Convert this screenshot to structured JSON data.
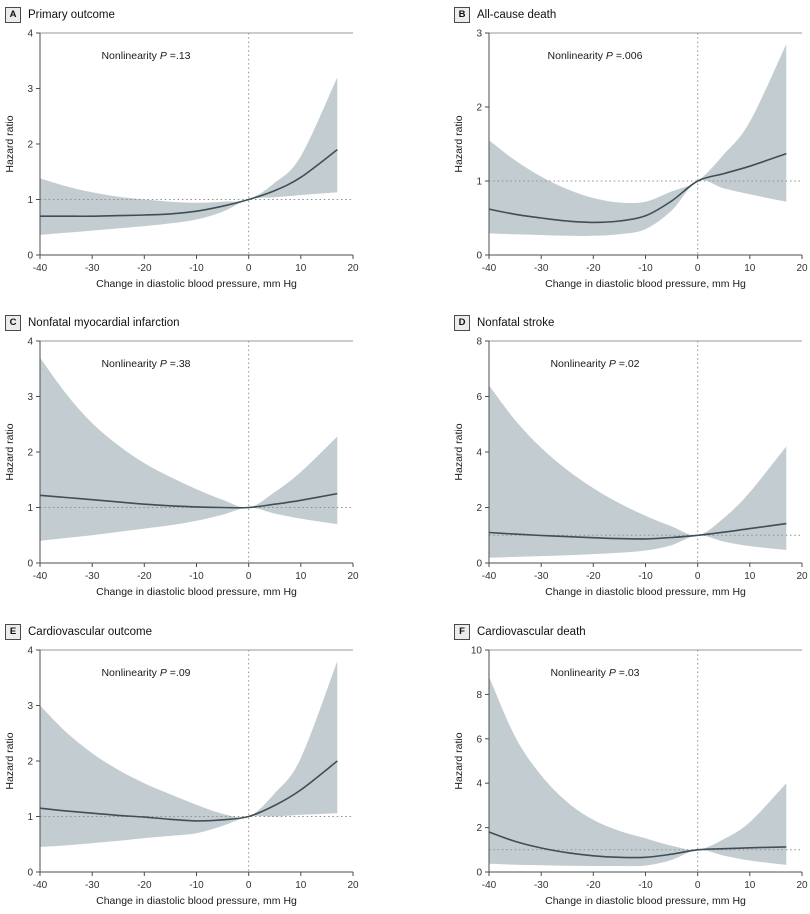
{
  "figure": {
    "nonlinearity_label": "Nonlinearity",
    "p_symbol": "P",
    "equals": "=",
    "colors": {
      "band": "#c3cdd1",
      "line": "#3f4e57",
      "ref_line": "#8f8f8f",
      "axis": "#4d4d4d",
      "top_rule": "#9a9a9a"
    }
  },
  "chart_data": [
    {
      "type": "line",
      "panel_label": "A",
      "title": "Primary outcome",
      "nonlinearity_p": ".13",
      "xlabel": "Change in diastolic blood pressure, mm Hg",
      "ylabel": "Hazard ratio",
      "xlim": [
        -40,
        20
      ],
      "xticks": [
        -40,
        -30,
        -20,
        -10,
        0,
        10,
        20
      ],
      "ylim": [
        0,
        4
      ],
      "yticks": [
        0,
        1,
        2,
        3,
        4
      ],
      "ref_x": 0,
      "ref_y": 1,
      "x": [
        -40,
        -35,
        -30,
        -25,
        -20,
        -15,
        -10,
        -5,
        0,
        5,
        10,
        17
      ],
      "series": [
        {
          "name": "hazard-ratio",
          "values": [
            0.7,
            0.7,
            0.7,
            0.71,
            0.72,
            0.74,
            0.79,
            0.88,
            1.0,
            1.16,
            1.4,
            1.9
          ]
        },
        {
          "name": "ci-upper",
          "values": [
            1.38,
            1.24,
            1.13,
            1.05,
            1.0,
            0.96,
            0.94,
            0.96,
            1.0,
            1.3,
            1.78,
            3.2
          ]
        },
        {
          "name": "ci-lower",
          "values": [
            0.36,
            0.4,
            0.44,
            0.48,
            0.52,
            0.57,
            0.64,
            0.78,
            1.0,
            1.04,
            1.08,
            1.13
          ]
        }
      ]
    },
    {
      "type": "line",
      "panel_label": "B",
      "title": "All-cause death",
      "nonlinearity_p": ".006",
      "xlabel": "Change in diastolic blood pressure, mm Hg",
      "ylabel": "Hazard ratio",
      "xlim": [
        -40,
        20
      ],
      "xticks": [
        -40,
        -30,
        -20,
        -10,
        0,
        10,
        20
      ],
      "ylim": [
        0,
        3
      ],
      "yticks": [
        0,
        1,
        2,
        3
      ],
      "ref_x": 0,
      "ref_y": 1,
      "x": [
        -40,
        -35,
        -30,
        -25,
        -20,
        -15,
        -10,
        -5,
        0,
        5,
        10,
        17
      ],
      "series": [
        {
          "name": "hazard-ratio",
          "values": [
            0.62,
            0.55,
            0.5,
            0.46,
            0.44,
            0.46,
            0.53,
            0.73,
            1.0,
            1.1,
            1.2,
            1.37
          ]
        },
        {
          "name": "ci-upper",
          "values": [
            1.55,
            1.28,
            1.06,
            0.89,
            0.77,
            0.71,
            0.72,
            0.86,
            1.0,
            1.36,
            1.8,
            2.85
          ]
        },
        {
          "name": "ci-lower",
          "values": [
            0.29,
            0.28,
            0.27,
            0.26,
            0.26,
            0.28,
            0.35,
            0.6,
            1.0,
            0.9,
            0.82,
            0.72
          ]
        }
      ]
    },
    {
      "type": "line",
      "panel_label": "C",
      "title": "Nonfatal myocardial infarction",
      "nonlinearity_p": ".38",
      "xlabel": "Change in diastolic blood pressure, mm Hg",
      "ylabel": "Hazard ratio",
      "xlim": [
        -40,
        20
      ],
      "xticks": [
        -40,
        -30,
        -20,
        -10,
        0,
        10,
        20
      ],
      "ylim": [
        0,
        4
      ],
      "yticks": [
        0,
        1,
        2,
        3,
        4
      ],
      "ref_x": 0,
      "ref_y": 1,
      "x": [
        -40,
        -35,
        -30,
        -25,
        -20,
        -15,
        -10,
        -5,
        0,
        5,
        10,
        17
      ],
      "series": [
        {
          "name": "hazard-ratio",
          "values": [
            1.22,
            1.18,
            1.14,
            1.1,
            1.06,
            1.03,
            1.01,
            1.0,
            1.0,
            1.06,
            1.13,
            1.25
          ]
        },
        {
          "name": "ci-upper",
          "values": [
            3.7,
            3.05,
            2.52,
            2.12,
            1.8,
            1.55,
            1.33,
            1.14,
            1.0,
            1.28,
            1.64,
            2.28
          ]
        },
        {
          "name": "ci-lower",
          "values": [
            0.4,
            0.45,
            0.5,
            0.56,
            0.62,
            0.68,
            0.76,
            0.87,
            1.0,
            0.89,
            0.8,
            0.7
          ]
        }
      ]
    },
    {
      "type": "line",
      "panel_label": "D",
      "title": "Nonfatal stroke",
      "nonlinearity_p": ".02",
      "xlabel": "Change in diastolic blood pressure, mm Hg",
      "ylabel": "Hazard ratio",
      "xlim": [
        -40,
        20
      ],
      "xticks": [
        -40,
        -30,
        -20,
        -10,
        0,
        10,
        20
      ],
      "ylim": [
        0,
        8
      ],
      "yticks": [
        0,
        2,
        4,
        6,
        8
      ],
      "ref_x": 0,
      "ref_y": 1,
      "x": [
        -40,
        -35,
        -30,
        -25,
        -20,
        -15,
        -10,
        -5,
        0,
        5,
        10,
        17
      ],
      "series": [
        {
          "name": "hazard-ratio",
          "values": [
            1.1,
            1.04,
            0.99,
            0.95,
            0.91,
            0.88,
            0.87,
            0.92,
            1.0,
            1.11,
            1.24,
            1.42
          ]
        },
        {
          "name": "ci-upper",
          "values": [
            6.4,
            5.15,
            4.15,
            3.35,
            2.7,
            2.15,
            1.7,
            1.32,
            1.0,
            1.62,
            2.55,
            4.2
          ]
        },
        {
          "name": "ci-lower",
          "values": [
            0.19,
            0.22,
            0.25,
            0.28,
            0.32,
            0.37,
            0.45,
            0.64,
            1.0,
            0.77,
            0.61,
            0.47
          ]
        }
      ]
    },
    {
      "type": "line",
      "panel_label": "E",
      "title": "Cardiovascular outcome",
      "nonlinearity_p": ".09",
      "xlabel": "Change in diastolic blood pressure, mm Hg",
      "ylabel": "Hazard ratio",
      "xlim": [
        -40,
        20
      ],
      "xticks": [
        -40,
        -30,
        -20,
        -10,
        0,
        10,
        20
      ],
      "ylim": [
        0,
        4
      ],
      "yticks": [
        0,
        1,
        2,
        3,
        4
      ],
      "ref_x": 0,
      "ref_y": 1,
      "x": [
        -40,
        -35,
        -30,
        -25,
        -20,
        -15,
        -10,
        -5,
        0,
        5,
        10,
        17
      ],
      "series": [
        {
          "name": "hazard-ratio",
          "values": [
            1.15,
            1.1,
            1.06,
            1.02,
            0.99,
            0.95,
            0.92,
            0.94,
            1.0,
            1.2,
            1.48,
            2.0
          ]
        },
        {
          "name": "ci-upper",
          "values": [
            3.0,
            2.52,
            2.14,
            1.84,
            1.6,
            1.4,
            1.21,
            1.05,
            1.0,
            1.42,
            2.05,
            3.8
          ]
        },
        {
          "name": "ci-lower",
          "values": [
            0.45,
            0.48,
            0.52,
            0.56,
            0.61,
            0.65,
            0.7,
            0.83,
            1.0,
            1.0,
            1.03,
            1.06
          ]
        }
      ]
    },
    {
      "type": "line",
      "panel_label": "F",
      "title": "Cardiovascular death",
      "nonlinearity_p": ".03",
      "xlabel": "Change in diastolic blood pressure, mm Hg",
      "ylabel": "Hazard ratio",
      "xlim": [
        -40,
        20
      ],
      "xticks": [
        -40,
        -30,
        -20,
        -10,
        0,
        10,
        20
      ],
      "ylim": [
        0,
        10
      ],
      "yticks": [
        0,
        2,
        4,
        6,
        8,
        10
      ],
      "ref_x": 0,
      "ref_y": 1,
      "x": [
        -40,
        -35,
        -30,
        -25,
        -20,
        -15,
        -10,
        -5,
        0,
        5,
        10,
        17
      ],
      "series": [
        {
          "name": "hazard-ratio",
          "values": [
            1.8,
            1.38,
            1.08,
            0.87,
            0.73,
            0.66,
            0.66,
            0.8,
            1.0,
            1.05,
            1.09,
            1.13
          ]
        },
        {
          "name": "ci-upper",
          "values": [
            8.8,
            6.1,
            4.35,
            3.15,
            2.35,
            1.85,
            1.52,
            1.18,
            1.0,
            1.48,
            2.25,
            4.0
          ]
        },
        {
          "name": "ci-lower",
          "values": [
            0.37,
            0.33,
            0.3,
            0.28,
            0.27,
            0.27,
            0.29,
            0.54,
            1.0,
            0.74,
            0.52,
            0.32
          ]
        }
      ]
    }
  ]
}
